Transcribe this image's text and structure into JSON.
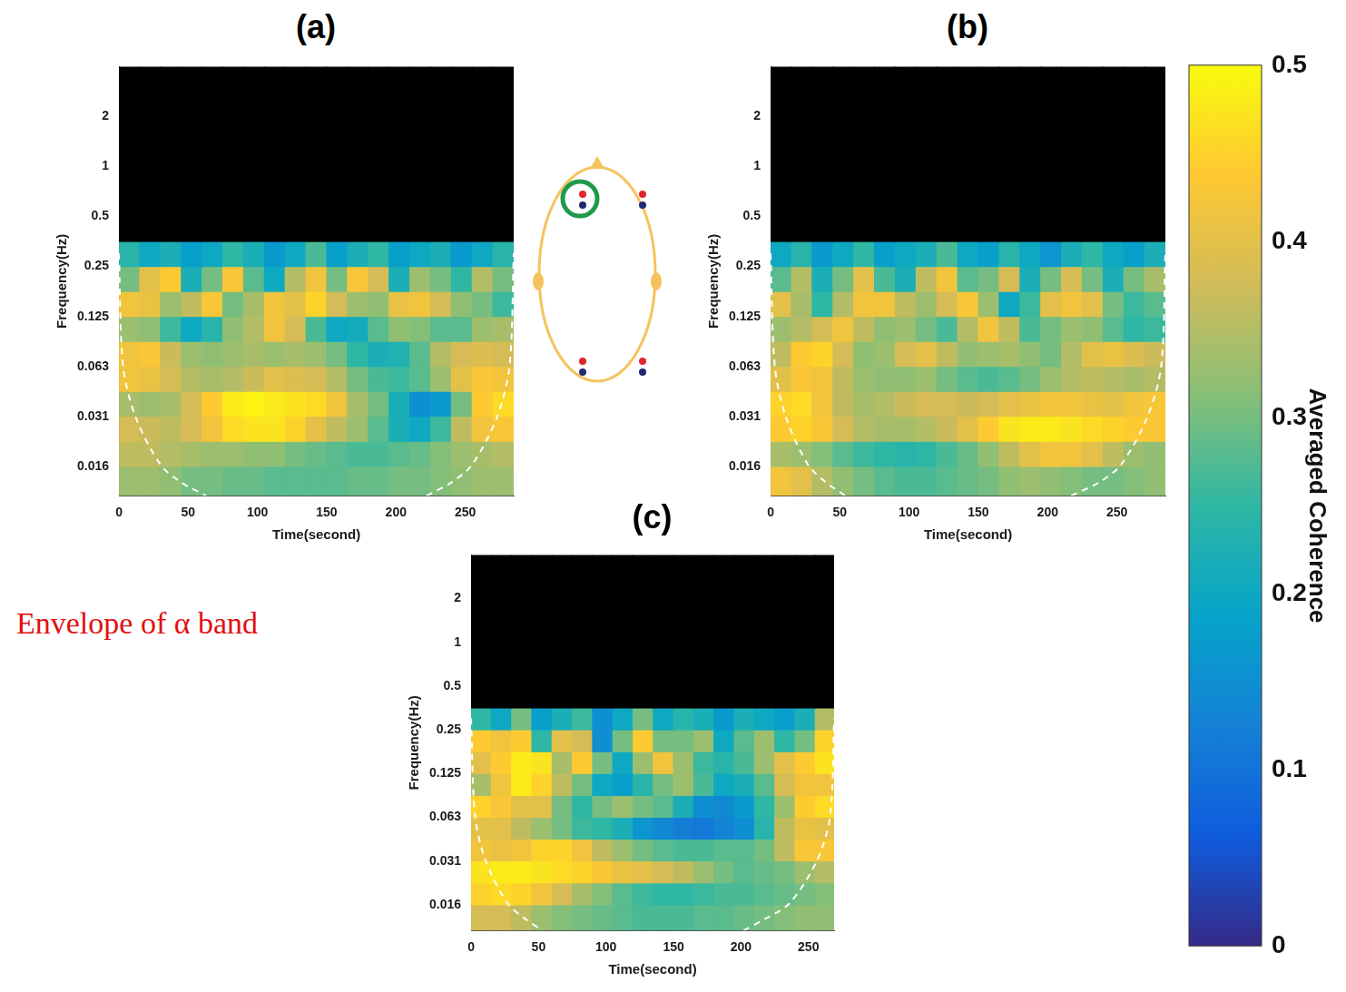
{
  "chart_data": [
    {
      "type": "heatmap",
      "title": "(a)",
      "xlabel": "Time(second)",
      "ylabel": "Frequency(Hz)",
      "log": "y",
      "grid": false,
      "xlim": [
        0,
        285
      ],
      "xticks": [
        0,
        50,
        100,
        150,
        200,
        250
      ],
      "ylim": [
        0.0104,
        4
      ],
      "yticks": [
        {
          "value": 0.015625,
          "label": "0.016"
        },
        {
          "value": 0.03125,
          "label": "0.031"
        },
        {
          "value": 0.0625,
          "label": "0.063"
        },
        0.125,
        0.25,
        0.5,
        1,
        2
      ],
      "time_edges": [
        0,
        15,
        30,
        45,
        60,
        75,
        90,
        105,
        120,
        135,
        150,
        165,
        180,
        195,
        210,
        225,
        240,
        255,
        270,
        285
      ],
      "frequency_edges": [
        0.0104,
        0.0156,
        0.0221,
        0.0313,
        0.0442,
        0.0625,
        0.0884,
        0.125,
        0.1768,
        0.25,
        0.3536,
        4
      ],
      "cells": [
        [
          0.33,
          0.33,
          0.32,
          0.3,
          0.3,
          0.29,
          0.29,
          0.28,
          0.28,
          0.28,
          0.28,
          0.29,
          0.29,
          0.3,
          0.3,
          0.31,
          0.32,
          0.33,
          0.33
        ],
        [
          0.36,
          0.36,
          0.35,
          0.34,
          0.33,
          0.33,
          0.32,
          0.32,
          0.3,
          0.29,
          0.28,
          0.27,
          0.27,
          0.28,
          0.29,
          0.31,
          0.33,
          0.34,
          0.35
        ],
        [
          0.38,
          0.37,
          0.36,
          0.38,
          0.42,
          0.46,
          0.47,
          0.47,
          0.45,
          0.4,
          0.36,
          0.33,
          0.28,
          0.22,
          0.2,
          0.26,
          0.36,
          0.42,
          0.43
        ],
        [
          0.34,
          0.33,
          0.34,
          0.38,
          0.44,
          0.48,
          0.49,
          0.48,
          0.47,
          0.46,
          0.42,
          0.34,
          0.3,
          0.22,
          0.15,
          0.17,
          0.3,
          0.44,
          0.46
        ],
        [
          0.42,
          0.41,
          0.38,
          0.35,
          0.34,
          0.35,
          0.37,
          0.4,
          0.39,
          0.38,
          0.35,
          0.3,
          0.27,
          0.26,
          0.28,
          0.33,
          0.4,
          0.43,
          0.42
        ],
        [
          0.42,
          0.43,
          0.37,
          0.33,
          0.32,
          0.33,
          0.34,
          0.33,
          0.34,
          0.33,
          0.3,
          0.25,
          0.22,
          0.23,
          0.28,
          0.35,
          0.38,
          0.39,
          0.38
        ],
        [
          0.33,
          0.32,
          0.26,
          0.2,
          0.24,
          0.32,
          0.35,
          0.42,
          0.38,
          0.27,
          0.2,
          0.21,
          0.28,
          0.32,
          0.31,
          0.28,
          0.28,
          0.33,
          0.34
        ],
        [
          0.42,
          0.41,
          0.33,
          0.36,
          0.43,
          0.3,
          0.34,
          0.42,
          0.4,
          0.45,
          0.38,
          0.33,
          0.32,
          0.41,
          0.42,
          0.38,
          0.32,
          0.3,
          0.26
        ],
        [
          0.3,
          0.4,
          0.44,
          0.22,
          0.3,
          0.43,
          0.28,
          0.2,
          0.35,
          0.42,
          0.3,
          0.43,
          0.38,
          0.22,
          0.33,
          0.3,
          0.25,
          0.35,
          0.3
        ],
        [
          0.24,
          0.2,
          0.22,
          0.18,
          0.2,
          0.25,
          0.22,
          0.17,
          0.2,
          0.27,
          0.18,
          0.22,
          0.25,
          0.18,
          0.2,
          0.22,
          0.17,
          0.2,
          0.24
        ],
        [
          null,
          null,
          null,
          null,
          null,
          null,
          null,
          null,
          null,
          null,
          null,
          null,
          null,
          null,
          null,
          null,
          null,
          null,
          null
        ]
      ],
      "coi": [
        {
          "x": [
            0,
            3,
            12,
            30,
            45,
            63
          ],
          "values": [
            0.3,
            0.063,
            0.031,
            0.016,
            0.0125,
            0.0104
          ],
          "color": "#ffffff",
          "line_style": "dashed"
        },
        {
          "x": [
            222,
            240,
            255,
            273,
            282,
            285
          ],
          "values": [
            0.0104,
            0.0125,
            0.016,
            0.031,
            0.063,
            0.3
          ],
          "color": "#ffffff",
          "line_style": "dashed"
        }
      ]
    },
    {
      "type": "heatmap",
      "title": "(b)",
      "xlabel": "Time(second)",
      "ylabel": "Frequency(Hz)",
      "log": "y",
      "grid": false,
      "xlim": [
        0,
        285
      ],
      "xticks": [
        0,
        50,
        100,
        150,
        200,
        250
      ],
      "ylim": [
        0.0104,
        4
      ],
      "yticks": [
        {
          "value": 0.015625,
          "label": "0.016"
        },
        {
          "value": 0.03125,
          "label": "0.031"
        },
        {
          "value": 0.0625,
          "label": "0.063"
        },
        0.125,
        0.25,
        0.5,
        1,
        2
      ],
      "time_edges": [
        0,
        15,
        30,
        45,
        60,
        75,
        90,
        105,
        120,
        135,
        150,
        165,
        180,
        195,
        210,
        225,
        240,
        255,
        270,
        285
      ],
      "frequency_edges": [
        0.0104,
        0.0156,
        0.0221,
        0.0313,
        0.0442,
        0.0625,
        0.0884,
        0.125,
        0.1768,
        0.25,
        0.3536,
        4
      ],
      "cells": [
        [
          0.42,
          0.4,
          0.35,
          0.32,
          0.3,
          0.28,
          0.27,
          0.27,
          0.28,
          0.29,
          0.3,
          0.32,
          0.33,
          0.32,
          0.31,
          0.3,
          0.3,
          0.31,
          0.32
        ],
        [
          0.34,
          0.33,
          0.31,
          0.28,
          0.26,
          0.25,
          0.24,
          0.25,
          0.27,
          0.29,
          0.32,
          0.36,
          0.4,
          0.42,
          0.42,
          0.4,
          0.36,
          0.33,
          0.32
        ],
        [
          0.44,
          0.45,
          0.43,
          0.38,
          0.35,
          0.34,
          0.34,
          0.35,
          0.37,
          0.4,
          0.44,
          0.47,
          0.48,
          0.48,
          0.47,
          0.46,
          0.45,
          0.44,
          0.43
        ],
        [
          0.45,
          0.46,
          0.42,
          0.36,
          0.34,
          0.35,
          0.37,
          0.38,
          0.38,
          0.37,
          0.38,
          0.4,
          0.41,
          0.42,
          0.42,
          0.41,
          0.4,
          0.42,
          0.43
        ],
        [
          0.4,
          0.43,
          0.42,
          0.36,
          0.33,
          0.32,
          0.32,
          0.33,
          0.3,
          0.28,
          0.27,
          0.28,
          0.3,
          0.33,
          0.35,
          0.36,
          0.35,
          0.34,
          0.35
        ],
        [
          0.36,
          0.44,
          0.45,
          0.38,
          0.32,
          0.33,
          0.38,
          0.4,
          0.36,
          0.32,
          0.33,
          0.34,
          0.32,
          0.3,
          0.35,
          0.4,
          0.41,
          0.39,
          0.37
        ],
        [
          0.33,
          0.35,
          0.38,
          0.42,
          0.36,
          0.32,
          0.33,
          0.3,
          0.27,
          0.35,
          0.42,
          0.36,
          0.27,
          0.3,
          0.33,
          0.32,
          0.28,
          0.25,
          0.26
        ],
        [
          0.4,
          0.34,
          0.25,
          0.35,
          0.42,
          0.42,
          0.36,
          0.33,
          0.38,
          0.43,
          0.33,
          0.2,
          0.26,
          0.4,
          0.42,
          0.4,
          0.3,
          0.26,
          0.28
        ],
        [
          0.28,
          0.35,
          0.22,
          0.3,
          0.4,
          0.27,
          0.22,
          0.36,
          0.42,
          0.28,
          0.3,
          0.38,
          0.22,
          0.3,
          0.38,
          0.3,
          0.22,
          0.3,
          0.34
        ],
        [
          0.2,
          0.24,
          0.17,
          0.2,
          0.25,
          0.18,
          0.2,
          0.22,
          0.27,
          0.2,
          0.18,
          0.24,
          0.2,
          0.16,
          0.22,
          0.25,
          0.2,
          0.18,
          0.22
        ],
        [
          null,
          null,
          null,
          null,
          null,
          null,
          null,
          null,
          null,
          null,
          null,
          null,
          null,
          null,
          null,
          null,
          null,
          null,
          null
        ]
      ],
      "coi": [
        {
          "x": [
            0,
            3,
            11,
            27,
            40,
            54
          ],
          "values": [
            0.3,
            0.063,
            0.031,
            0.016,
            0.0125,
            0.0104
          ],
          "color": "#ffffff",
          "line_style": "dashed"
        },
        {
          "x": [
            217,
            237,
            253,
            272,
            282,
            285
          ],
          "values": [
            0.0104,
            0.0125,
            0.016,
            0.031,
            0.063,
            0.3
          ],
          "color": "#ffffff",
          "line_style": "dashed"
        }
      ]
    },
    {
      "type": "heatmap",
      "title": "(c)",
      "xlabel": "Time(second)",
      "ylabel": "Frequency(Hz)",
      "log": "y",
      "grid": false,
      "xlim": [
        0,
        269
      ],
      "xticks": [
        0,
        50,
        100,
        150,
        200,
        250
      ],
      "ylim": [
        0.0104,
        4
      ],
      "yticks": [
        {
          "value": 0.015625,
          "label": "0.016"
        },
        {
          "value": 0.03125,
          "label": "0.031"
        },
        {
          "value": 0.0625,
          "label": "0.063"
        },
        0.125,
        0.25,
        0.5,
        1,
        2
      ],
      "time_edges": [
        0,
        15,
        30,
        45,
        60,
        75,
        90,
        105,
        120,
        135,
        150,
        165,
        180,
        195,
        210,
        225,
        240,
        255,
        269
      ],
      "frequency_edges": [
        0.0104,
        0.0156,
        0.0221,
        0.0313,
        0.0442,
        0.0625,
        0.0884,
        0.125,
        0.1768,
        0.25,
        0.3536,
        4
      ],
      "cells": [
        [
          0.38,
          0.38,
          0.36,
          0.33,
          0.31,
          0.3,
          0.29,
          0.28,
          0.27,
          0.27,
          0.27,
          0.28,
          0.28,
          0.29,
          0.3,
          0.31,
          0.32,
          0.32
        ],
        [
          0.45,
          0.46,
          0.45,
          0.42,
          0.38,
          0.34,
          0.31,
          0.28,
          0.26,
          0.25,
          0.25,
          0.26,
          0.27,
          0.27,
          0.28,
          0.29,
          0.3,
          0.31
        ],
        [
          0.47,
          0.48,
          0.48,
          0.47,
          0.46,
          0.45,
          0.43,
          0.41,
          0.4,
          0.38,
          0.36,
          0.33,
          0.3,
          0.28,
          0.29,
          0.3,
          0.33,
          0.35
        ],
        [
          0.42,
          0.41,
          0.42,
          0.45,
          0.45,
          0.42,
          0.36,
          0.33,
          0.3,
          0.28,
          0.27,
          0.27,
          0.28,
          0.28,
          0.3,
          0.36,
          0.43,
          0.43
        ],
        [
          0.4,
          0.4,
          0.36,
          0.33,
          0.3,
          0.26,
          0.25,
          0.22,
          0.16,
          0.14,
          0.12,
          0.11,
          0.13,
          0.15,
          0.24,
          0.36,
          0.41,
          0.4
        ],
        [
          0.45,
          0.43,
          0.4,
          0.4,
          0.3,
          0.25,
          0.3,
          0.33,
          0.3,
          0.28,
          0.22,
          0.15,
          0.14,
          0.17,
          0.25,
          0.33,
          0.44,
          0.46
        ],
        [
          0.34,
          0.42,
          0.48,
          0.45,
          0.36,
          0.3,
          0.2,
          0.18,
          0.24,
          0.3,
          0.33,
          0.27,
          0.2,
          0.22,
          0.28,
          0.38,
          0.42,
          0.42
        ],
        [
          0.4,
          0.44,
          0.48,
          0.47,
          0.34,
          0.44,
          0.3,
          0.2,
          0.33,
          0.42,
          0.33,
          0.26,
          0.24,
          0.27,
          0.33,
          0.4,
          0.44,
          0.47
        ],
        [
          0.44,
          0.42,
          0.44,
          0.25,
          0.4,
          0.38,
          0.15,
          0.3,
          0.44,
          0.3,
          0.3,
          0.33,
          0.2,
          0.28,
          0.33,
          0.25,
          0.3,
          0.45
        ],
        [
          0.25,
          0.2,
          0.3,
          0.18,
          0.22,
          0.26,
          0.15,
          0.2,
          0.3,
          0.2,
          0.24,
          0.22,
          0.17,
          0.22,
          0.2,
          0.18,
          0.22,
          0.35
        ],
        [
          null,
          null,
          null,
          null,
          null,
          null,
          null,
          null,
          null,
          null,
          null,
          null,
          null,
          null,
          null,
          null,
          null,
          null
        ]
      ],
      "coi": [
        {
          "x": [
            0,
            3,
            11,
            27,
            40,
            53
          ],
          "values": [
            0.3,
            0.063,
            0.031,
            0.016,
            0.0125,
            0.0104
          ],
          "color": "#ffffff",
          "line_style": "dashed"
        },
        {
          "x": [
            202,
            218,
            236,
            256,
            266,
            269
          ],
          "values": [
            0.0104,
            0.0125,
            0.016,
            0.031,
            0.063,
            0.3
          ],
          "color": "#ffffff",
          "line_style": "dashed"
        }
      ]
    }
  ],
  "colorbar": {
    "lim": [
      0,
      0.5
    ],
    "ticks": [
      0,
      0.1,
      0.2,
      0.3,
      0.4,
      0.5
    ],
    "label": "Averaged Coherence"
  },
  "annotation": "Envelope of α band"
}
